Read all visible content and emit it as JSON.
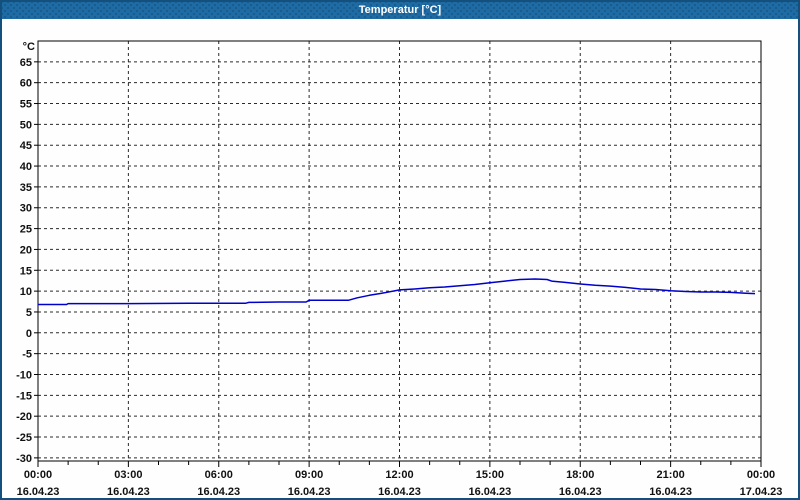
{
  "window": {
    "title": "Temperatur [°C]"
  },
  "colors": {
    "titlebar_bg": "#1e6ba5",
    "titlebar_text": "#ffffff",
    "window_border": "#14507e",
    "chart_bg": "#fdfefd",
    "axis_color": "#000000",
    "grid_color": "#2b2b2b",
    "label_color": "#111111",
    "line_color": "#0000cc"
  },
  "chart_data": {
    "type": "line",
    "title": "Temperatur [°C]",
    "xlabel": "",
    "ylabel": "°C",
    "grid": true,
    "legend": "none",
    "ylim": [
      -30.75,
      70
    ],
    "y_ticks": [
      65,
      60,
      55,
      50,
      45,
      40,
      35,
      30,
      25,
      20,
      15,
      10,
      5,
      0,
      -5,
      -10,
      -15,
      -20,
      -25,
      -30
    ],
    "x_range_hours": [
      0,
      24
    ],
    "x_minor_tick_hours": 1,
    "x_ticks": [
      {
        "hour": 0,
        "time": "00:00",
        "date": "16.04.23"
      },
      {
        "hour": 3,
        "time": "03:00",
        "date": "16.04.23"
      },
      {
        "hour": 6,
        "time": "06:00",
        "date": "16.04.23"
      },
      {
        "hour": 9,
        "time": "09:00",
        "date": "16.04.23"
      },
      {
        "hour": 12,
        "time": "12:00",
        "date": "16.04.23"
      },
      {
        "hour": 15,
        "time": "15:00",
        "date": "16.04.23"
      },
      {
        "hour": 18,
        "time": "18:00",
        "date": "16.04.23"
      },
      {
        "hour": 21,
        "time": "21:00",
        "date": "16.04.23"
      },
      {
        "hour": 24,
        "time": "00:00",
        "date": "17.04.23"
      }
    ],
    "series": [
      {
        "name": "Temperatur",
        "color": "#0000cc",
        "points": [
          [
            0.0,
            6.8
          ],
          [
            0.95,
            6.8
          ],
          [
            1.0,
            7.0
          ],
          [
            3.0,
            7.0
          ],
          [
            5.0,
            7.1
          ],
          [
            6.9,
            7.1
          ],
          [
            7.0,
            7.3
          ],
          [
            8.0,
            7.4
          ],
          [
            8.9,
            7.4
          ],
          [
            9.0,
            7.8
          ],
          [
            10.3,
            7.8
          ],
          [
            10.6,
            8.4
          ],
          [
            11.0,
            9.0
          ],
          [
            11.5,
            9.6
          ],
          [
            12.0,
            10.3
          ],
          [
            12.5,
            10.5
          ],
          [
            13.0,
            10.8
          ],
          [
            13.5,
            11.0
          ],
          [
            14.0,
            11.3
          ],
          [
            14.5,
            11.6
          ],
          [
            15.0,
            12.0
          ],
          [
            15.5,
            12.4
          ],
          [
            16.0,
            12.8
          ],
          [
            16.5,
            12.9
          ],
          [
            16.9,
            12.8
          ],
          [
            17.05,
            12.4
          ],
          [
            17.5,
            12.1
          ],
          [
            18.0,
            11.7
          ],
          [
            18.5,
            11.4
          ],
          [
            19.0,
            11.2
          ],
          [
            19.5,
            10.9
          ],
          [
            20.0,
            10.5
          ],
          [
            20.5,
            10.4
          ],
          [
            21.0,
            10.1
          ],
          [
            21.5,
            9.9
          ],
          [
            22.0,
            9.8
          ],
          [
            22.5,
            9.8
          ],
          [
            23.0,
            9.7
          ],
          [
            23.5,
            9.5
          ],
          [
            23.8,
            9.4
          ]
        ]
      }
    ]
  }
}
